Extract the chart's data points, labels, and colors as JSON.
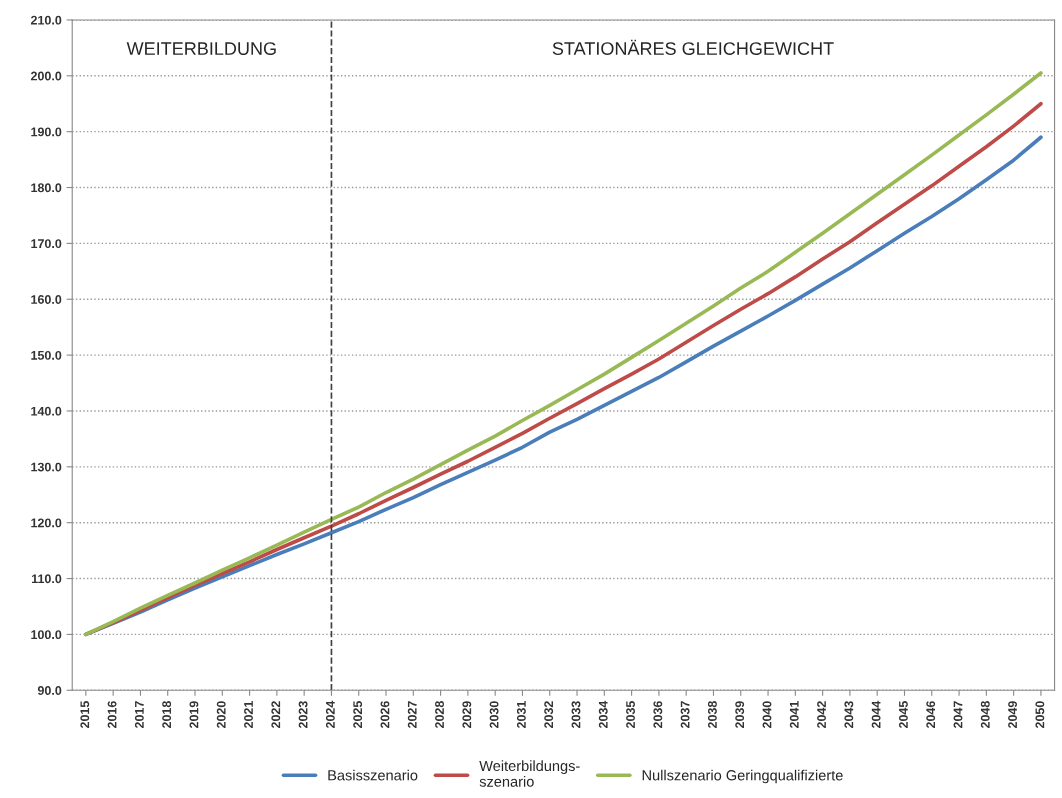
{
  "chart_data": {
    "type": "line",
    "categories": [
      "2015",
      "2016",
      "2017",
      "2018",
      "2019",
      "2020",
      "2021",
      "2022",
      "2023",
      "2024",
      "2025",
      "2026",
      "2027",
      "2028",
      "2029",
      "2030",
      "2031",
      "2032",
      "2033",
      "2034",
      "2035",
      "2036",
      "2037",
      "2038",
      "2039",
      "2040",
      "2041",
      "2042",
      "2043",
      "2044",
      "2045",
      "2046",
      "2047",
      "2048",
      "2049",
      "2050"
    ],
    "series": [
      {
        "name": "Basisszenario",
        "color": "#4a7ebb",
        "values": [
          100,
          102,
          104,
          106.2,
          108.3,
          110.3,
          112.3,
          114.3,
          116.2,
          118.2,
          120.2,
          122.4,
          124.5,
          126.8,
          129,
          131.2,
          133.5,
          136.2,
          138.5,
          141,
          143.5,
          146,
          148.8,
          151.6,
          154.3,
          157,
          159.8,
          162.7,
          165.6,
          168.7,
          171.8,
          174.8,
          178,
          181.4,
          184.9,
          189
        ]
      },
      {
        "name": "Weiterbildungs-\nszenario",
        "color": "#be4b48",
        "values": [
          100,
          102.1,
          104.3,
          106.6,
          108.8,
          110.9,
          113,
          115.2,
          117.3,
          119.4,
          121.6,
          124,
          126.3,
          128.7,
          131,
          133.5,
          136,
          138.7,
          141.3,
          144,
          146.6,
          149.3,
          152.3,
          155.3,
          158.2,
          161,
          164,
          167.2,
          170.3,
          173.7,
          177,
          180.3,
          183.8,
          187.3,
          191,
          195
        ]
      },
      {
        "name": "Nullszenario Geringqualifizierte",
        "color": "#98b954",
        "values": [
          100,
          102.3,
          104.7,
          107,
          109.2,
          111.5,
          113.7,
          116,
          118.3,
          120.6,
          122.8,
          125.4,
          127.8,
          130.4,
          133,
          135.5,
          138.3,
          141,
          143.8,
          146.6,
          149.6,
          152.6,
          155.7,
          158.8,
          162,
          165,
          168.4,
          171.8,
          175.3,
          178.8,
          182.3,
          185.8,
          189.4,
          193,
          196.7,
          200.5
        ]
      }
    ],
    "ylim": [
      90,
      210
    ],
    "yticks": [
      {
        "value": 90,
        "label": "90.0"
      },
      {
        "value": 100,
        "label": "100.0"
      },
      {
        "value": 110,
        "label": "110.0"
      },
      {
        "value": 120,
        "label": "120.0"
      },
      {
        "value": 130,
        "label": "130.0"
      },
      {
        "value": 140,
        "label": "140.0"
      },
      {
        "value": 150,
        "label": "150.0"
      },
      {
        "value": 160,
        "label": "160.0"
      },
      {
        "value": 170,
        "label": "170.0"
      },
      {
        "value": 180,
        "label": "180.0"
      },
      {
        "value": 190,
        "label": "190.0"
      },
      {
        "value": 200,
        "label": "200.0"
      },
      {
        "value": 210,
        "label": "210.0"
      }
    ],
    "ref_lines": [
      {
        "axis": "x",
        "value": "2024",
        "color": "#404040",
        "line_style": "dashed"
      }
    ],
    "annotations": [
      "WEITERBILDUNG",
      "STATIONÄRES GLEICHGEWICHT"
    ],
    "grid": "y",
    "legend": "bottom",
    "marker": "none",
    "line_style": "solid"
  }
}
